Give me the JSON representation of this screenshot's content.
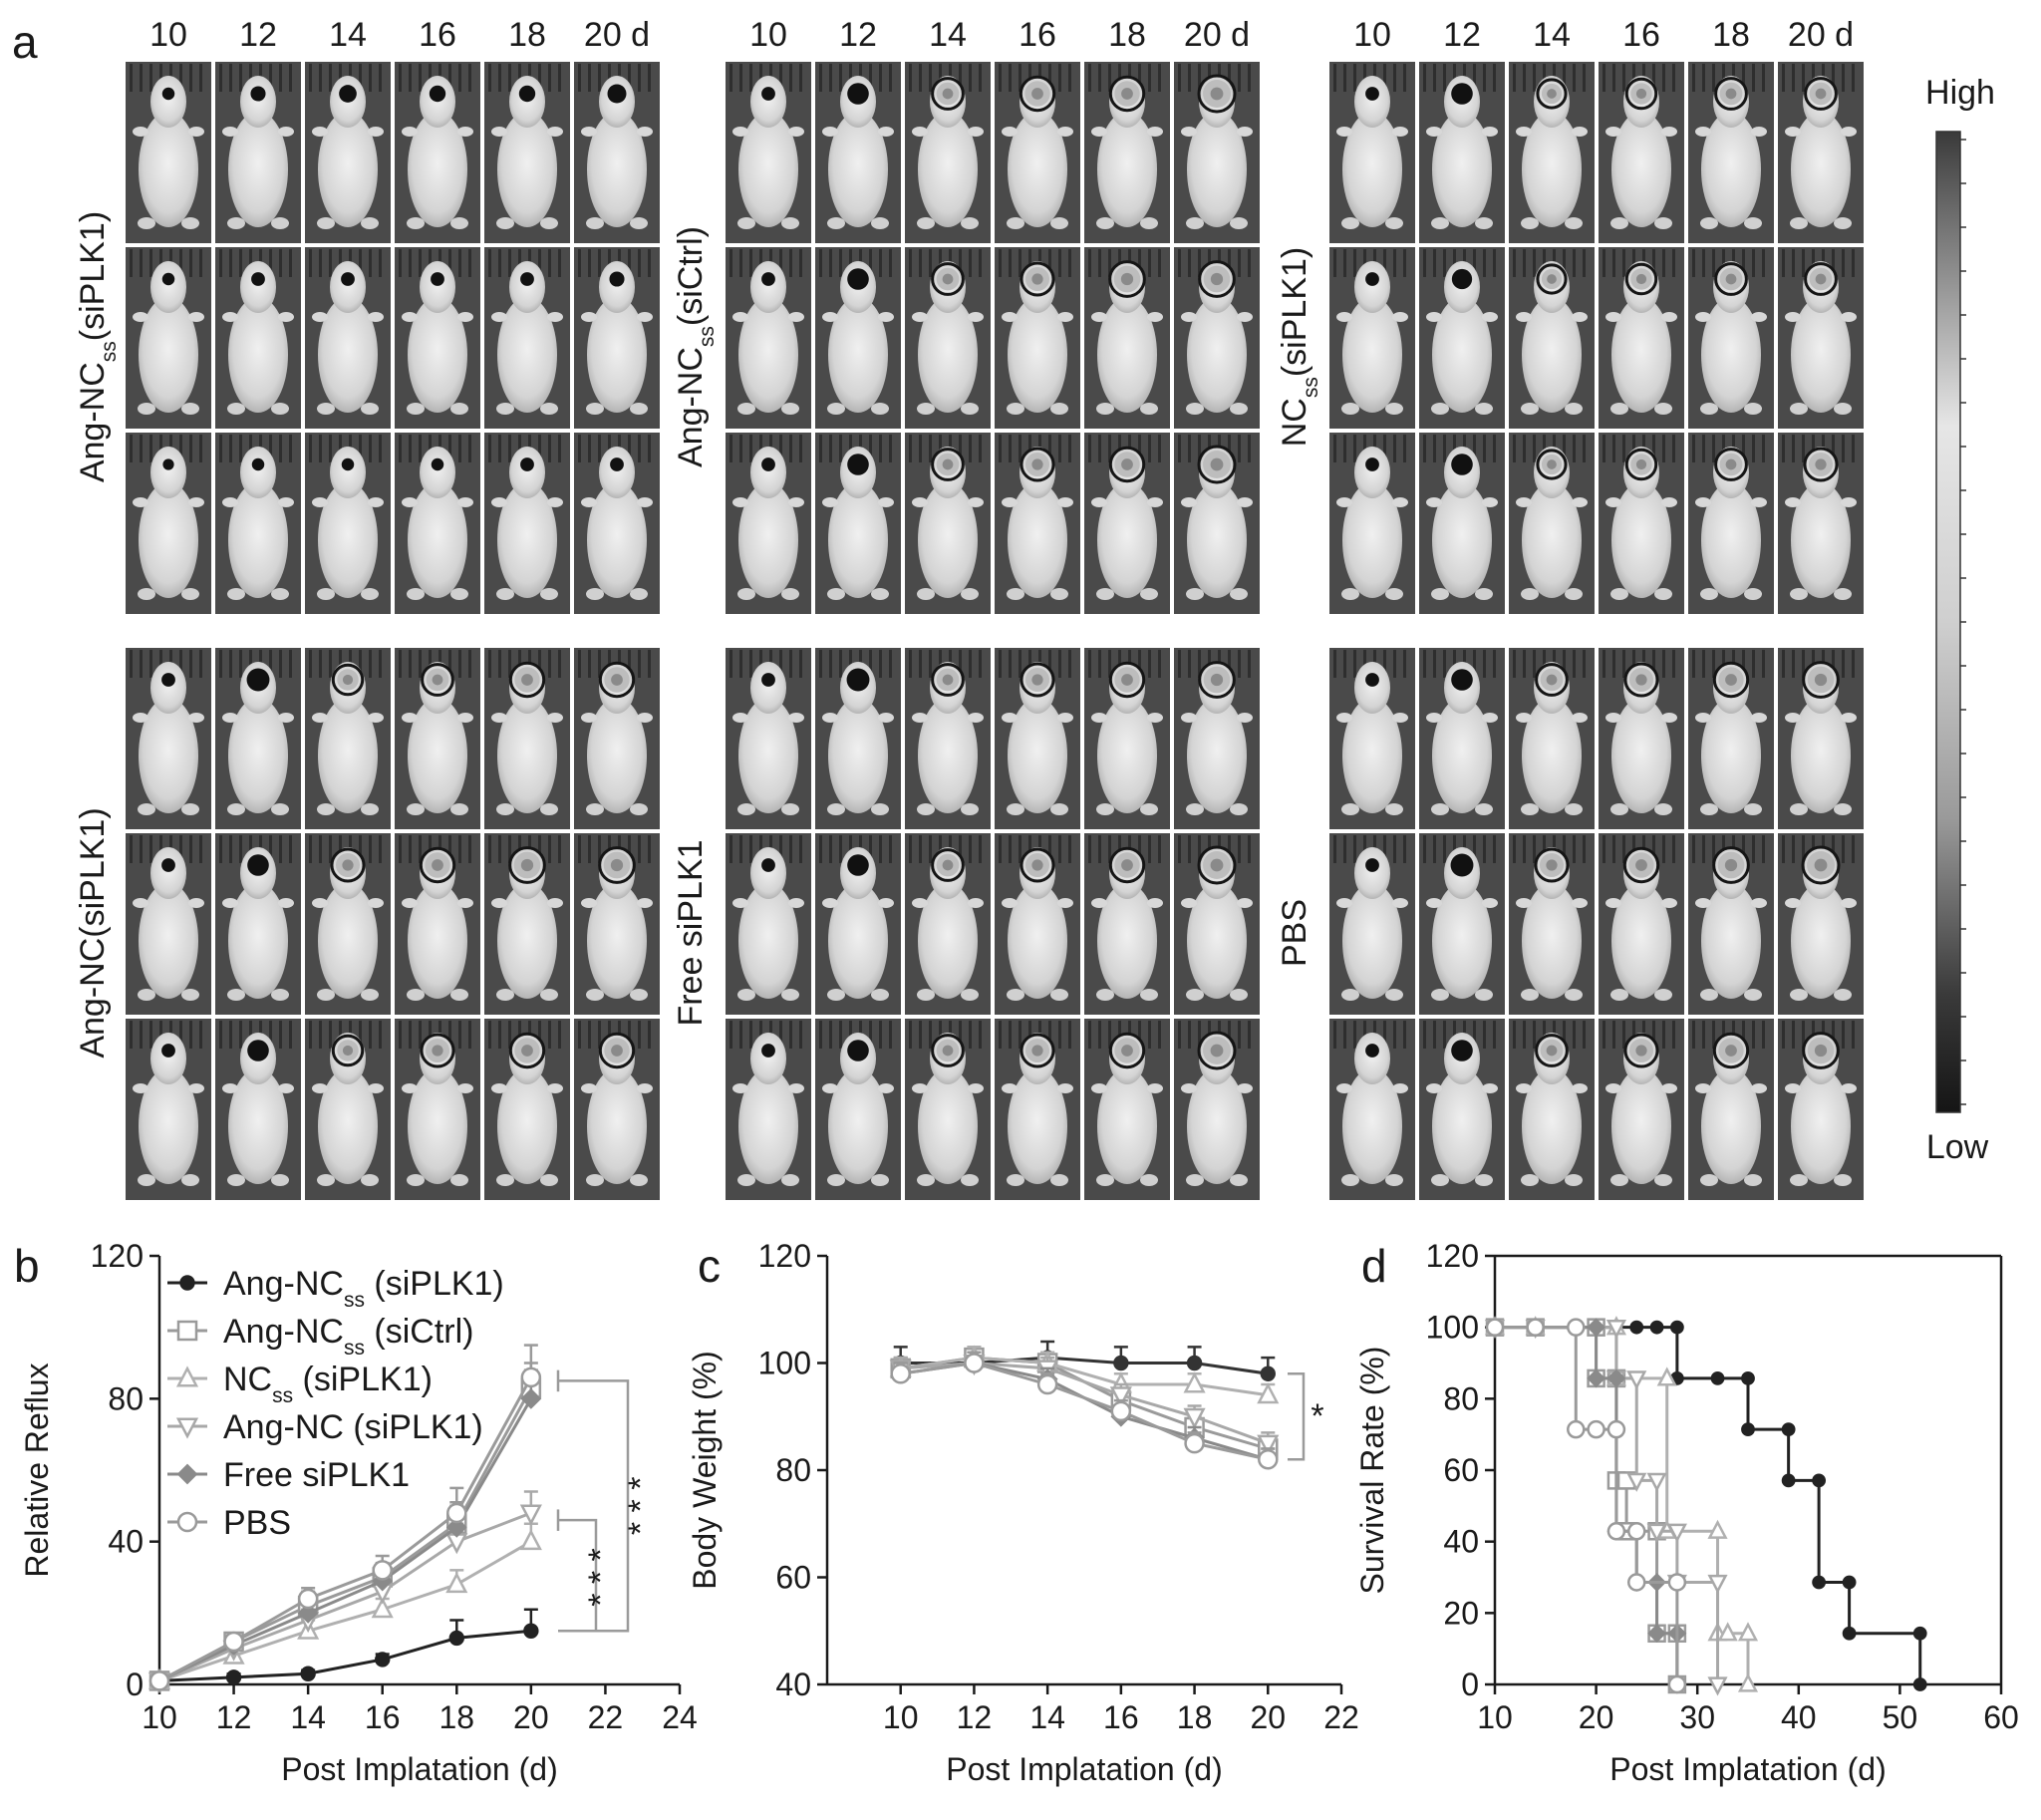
{
  "panel_a": {
    "label": "a",
    "days": [
      "10",
      "12",
      "14",
      "16",
      "18",
      "20 d"
    ],
    "groups": [
      {
        "name": "Ang-NC",
        "sub": "ss",
        "suffix": "(siPLK1)"
      },
      {
        "name": "Ang-NC",
        "sub": "ss",
        "suffix": "(siCtrl)"
      },
      {
        "name": "NC",
        "sub": "ss",
        "suffix": "(siPLK1)"
      },
      {
        "name": "Ang-NC",
        "sub": "",
        "suffix": "(siPLK1)"
      },
      {
        "name": "Free siPLK1",
        "sub": "",
        "suffix": ""
      },
      {
        "name": "PBS",
        "sub": "",
        "suffix": ""
      }
    ],
    "scale_high": "High",
    "scale_low": "Low",
    "signal_levels": [
      [
        [
          0.25,
          0.35,
          0.45,
          0.4,
          0.4,
          0.5
        ],
        [
          0.25,
          0.3,
          0.3,
          0.3,
          0.3,
          0.35
        ],
        [
          0.2,
          0.25,
          0.25,
          0.25,
          0.3,
          0.3
        ]
      ],
      [
        [
          0.3,
          0.6,
          0.8,
          0.9,
          0.9,
          1.0
        ],
        [
          0.3,
          0.6,
          0.8,
          0.85,
          0.95,
          0.95
        ],
        [
          0.3,
          0.6,
          0.8,
          0.85,
          0.9,
          1.0
        ]
      ],
      [
        [
          0.3,
          0.6,
          0.7,
          0.75,
          0.8,
          0.8
        ],
        [
          0.3,
          0.55,
          0.7,
          0.75,
          0.8,
          0.8
        ],
        [
          0.3,
          0.6,
          0.7,
          0.75,
          0.8,
          0.85
        ]
      ],
      [
        [
          0.3,
          0.65,
          0.75,
          0.8,
          0.9,
          0.9
        ],
        [
          0.3,
          0.6,
          0.85,
          0.9,
          0.95,
          0.95
        ],
        [
          0.3,
          0.6,
          0.75,
          0.85,
          0.9,
          0.9
        ]
      ],
      [
        [
          0.3,
          0.65,
          0.8,
          0.85,
          0.9,
          0.95
        ],
        [
          0.3,
          0.6,
          0.8,
          0.85,
          0.9,
          1.0
        ],
        [
          0.3,
          0.6,
          0.8,
          0.85,
          0.9,
          1.0
        ]
      ],
      [
        [
          0.3,
          0.6,
          0.8,
          0.85,
          0.9,
          0.95
        ],
        [
          0.3,
          0.65,
          0.85,
          0.9,
          0.95,
          1.0
        ],
        [
          0.3,
          0.6,
          0.8,
          0.85,
          0.9,
          0.95
        ]
      ]
    ]
  },
  "chart_data": [
    {
      "panel": "b",
      "type": "line",
      "xlabel": "Post Implatation (d)",
      "ylabel": "Relative Reflux",
      "xlim": [
        10,
        24
      ],
      "ylim": [
        0,
        120
      ],
      "xticks": [
        10,
        12,
        14,
        16,
        18,
        20,
        22,
        24
      ],
      "yticks": [
        0,
        40,
        80,
        120
      ],
      "x": [
        10,
        12,
        14,
        16,
        18,
        20
      ],
      "series": [
        {
          "name": "Ang-NC",
          "sub": "ss",
          "suffix": " (siPLK1)",
          "marker": "dot",
          "color": "#222222",
          "values": [
            1,
            2,
            3,
            7,
            13,
            15
          ],
          "err": [
            0.5,
            1,
            1,
            1.5,
            5,
            6
          ]
        },
        {
          "name": "Ang-NC",
          "sub": "ss",
          "suffix": " (siCtrl)",
          "marker": "square",
          "color": "#9a9a9a",
          "values": [
            1,
            12,
            22,
            30,
            45,
            83
          ],
          "err": [
            0.5,
            2,
            4,
            4,
            6,
            7
          ]
        },
        {
          "name": "NC",
          "sub": "ss",
          "suffix": " (siPLK1)",
          "marker": "triangle",
          "color": "#b0b0b0",
          "values": [
            1,
            8,
            15,
            21,
            28,
            40
          ],
          "err": [
            0.5,
            2,
            3,
            3,
            4,
            5
          ]
        },
        {
          "name": "Ang-NC",
          "sub": "",
          "suffix": " (siPLK1)",
          "marker": "tri-down",
          "color": "#a8a8a8",
          "values": [
            1,
            10,
            18,
            26,
            40,
            48
          ],
          "err": [
            0.5,
            2,
            3,
            4,
            5,
            6
          ]
        },
        {
          "name": "Free siPLK1",
          "sub": "",
          "suffix": "",
          "marker": "diamond",
          "color": "#8a8a8a",
          "values": [
            1,
            11,
            20,
            29,
            44,
            80
          ],
          "err": [
            0.5,
            2,
            3,
            4,
            6,
            8
          ]
        },
        {
          "name": "PBS",
          "sub": "",
          "suffix": "",
          "marker": "circle",
          "color": "#9a9a9a",
          "values": [
            1,
            12,
            24,
            32,
            48,
            86
          ],
          "err": [
            0.5,
            2,
            3,
            4,
            7,
            9
          ]
        }
      ],
      "significance": [
        "* * *",
        "* * *"
      ]
    },
    {
      "panel": "c",
      "type": "line",
      "xlabel": "Post Implatation (d)",
      "ylabel": "Body Weight (%)",
      "xlim": [
        8,
        22
      ],
      "ylim": [
        40,
        120
      ],
      "xticks": [
        10,
        12,
        14,
        16,
        18,
        20,
        22
      ],
      "yticks": [
        40,
        60,
        80,
        100,
        120
      ],
      "x": [
        10,
        12,
        14,
        16,
        18,
        20
      ],
      "series": [
        {
          "marker": "dot",
          "color": "#333333",
          "values": [
            100,
            100,
            101,
            100,
            100,
            98
          ],
          "err": [
            3,
            2,
            3,
            3,
            3,
            3
          ]
        },
        {
          "marker": "square",
          "color": "#9a9a9a",
          "values": [
            99,
            101,
            100,
            93,
            88,
            84
          ],
          "err": [
            2,
            2,
            2,
            2,
            2,
            2
          ]
        },
        {
          "marker": "triangle",
          "color": "#b0b0b0",
          "values": [
            99,
            101,
            100,
            96,
            96,
            94
          ],
          "err": [
            2,
            2,
            2,
            2,
            2,
            2
          ]
        },
        {
          "marker": "tri-down",
          "color": "#a8a8a8",
          "values": [
            99,
            100,
            99,
            94,
            90,
            85
          ],
          "err": [
            2,
            2,
            2,
            2,
            2,
            2
          ]
        },
        {
          "marker": "diamond",
          "color": "#8a8a8a",
          "values": [
            98,
            100,
            97,
            90,
            86,
            82
          ],
          "err": [
            2,
            2,
            2,
            2,
            2,
            2
          ]
        },
        {
          "marker": "circle",
          "color": "#9a9a9a",
          "values": [
            98,
            100,
            96,
            91,
            85,
            82
          ],
          "err": [
            2,
            2,
            2,
            2,
            2,
            2
          ]
        }
      ],
      "significance": [
        "*"
      ]
    },
    {
      "panel": "d",
      "type": "line",
      "xlabel": "Post Implatation (d)",
      "ylabel": "Survival Rate (%)",
      "xlim": [
        10,
        60
      ],
      "ylim": [
        0,
        120
      ],
      "xticks": [
        10,
        20,
        30,
        40,
        50,
        60
      ],
      "yticks": [
        0,
        20,
        40,
        60,
        80,
        100,
        120
      ],
      "series": [
        {
          "marker": "dot",
          "color": "#222222",
          "x": [
            10,
            14,
            18,
            20,
            22,
            24,
            26,
            28,
            28,
            32,
            35,
            35,
            39,
            39,
            42,
            42,
            45,
            45,
            52,
            52
          ],
          "values": [
            100,
            100,
            100,
            100,
            100,
            100,
            100,
            100,
            85.7,
            85.7,
            85.7,
            71.4,
            71.4,
            57.1,
            57.1,
            28.6,
            28.6,
            14.3,
            14.3,
            0
          ]
        },
        {
          "marker": "square",
          "color": "#9a9a9a",
          "x": [
            10,
            14,
            20,
            20,
            22,
            22,
            23,
            23,
            26,
            26,
            28,
            28
          ],
          "values": [
            100,
            100,
            100,
            85.7,
            85.7,
            57.1,
            57.1,
            42.9,
            42.9,
            14.3,
            14.3,
            0
          ]
        },
        {
          "marker": "triangle",
          "color": "#b0b0b0",
          "x": [
            10,
            14,
            22,
            22,
            27,
            27,
            32,
            32,
            33,
            33,
            35,
            35
          ],
          "values": [
            100,
            100,
            100,
            85.7,
            85.7,
            42.9,
            42.9,
            14.3,
            14.3,
            14.3,
            14.3,
            0
          ]
        },
        {
          "marker": "tri-down",
          "color": "#a8a8a8",
          "x": [
            10,
            14,
            22,
            22,
            24,
            24,
            26,
            26,
            28,
            28,
            32,
            32
          ],
          "values": [
            100,
            100,
            100,
            85.7,
            85.7,
            57.1,
            57.1,
            42.9,
            42.9,
            28.6,
            28.6,
            0
          ]
        },
        {
          "marker": "diamond",
          "color": "#8a8a8a",
          "x": [
            10,
            14,
            20,
            20,
            22,
            22,
            24,
            24,
            26,
            26,
            28,
            28
          ],
          "values": [
            100,
            100,
            100,
            85.7,
            85.7,
            42.9,
            42.9,
            28.6,
            28.6,
            14.3,
            14.3,
            0
          ]
        },
        {
          "marker": "circle",
          "color": "#9a9a9a",
          "x": [
            10,
            14,
            18,
            18,
            20,
            20,
            22,
            22,
            24,
            24,
            28,
            28
          ],
          "values": [
            100,
            100,
            100,
            71.4,
            71.4,
            71.4,
            71.4,
            42.9,
            42.9,
            28.6,
            28.6,
            0
          ]
        }
      ]
    }
  ]
}
